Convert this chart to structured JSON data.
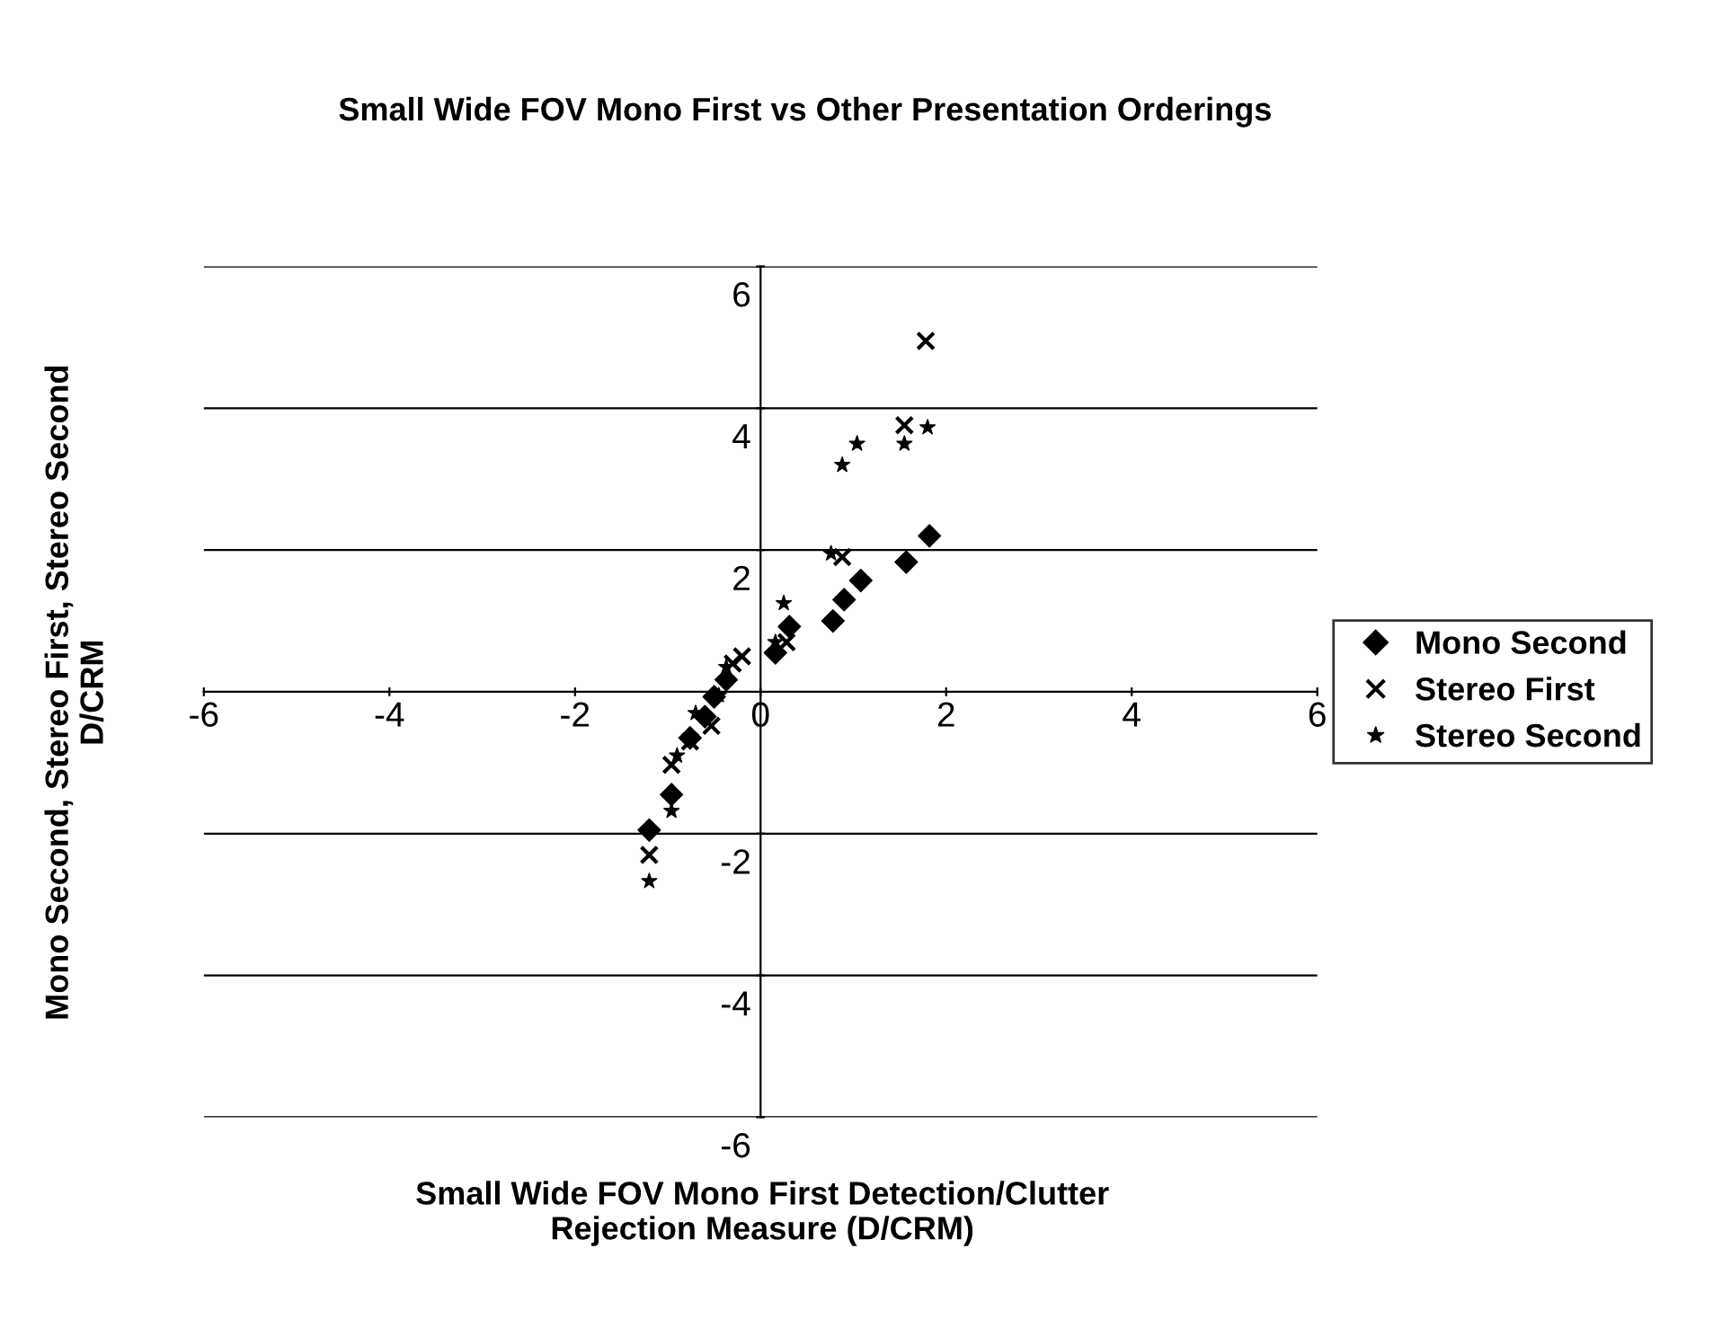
{
  "chart_data": {
    "type": "scatter",
    "title": "Small Wide FOV Mono First vs Other Presentation Orderings",
    "xlabel": "Small Wide FOV Mono First Detection/Clutter\nRejection Measure (D/CRM)",
    "ylabel": "Mono Second, Stereo First, Stereo Second\nD/CRM",
    "xlim": [
      -6,
      6
    ],
    "ylim": [
      -6,
      6
    ],
    "xticks": [
      -6,
      -4,
      -2,
      0,
      2,
      4,
      6
    ],
    "yticks": [
      -6,
      -4,
      -2,
      2,
      4,
      6
    ],
    "grid": "y",
    "legend": "right",
    "series": [
      {
        "name": "Mono Second",
        "color": "#000000",
        "marker": "diamond",
        "x": [
          1.82,
          1.57,
          1.08,
          0.9,
          0.78,
          0.31,
          0.16,
          -0.37,
          -0.5,
          -0.6,
          -0.76,
          -0.96,
          -1.2
        ],
        "values": [
          2.2,
          1.83,
          1.57,
          1.3,
          1.0,
          0.92,
          0.55,
          0.17,
          -0.07,
          -0.35,
          -0.65,
          -1.45,
          -1.95
        ]
      },
      {
        "name": "Stereo First",
        "color": "#000000",
        "marker": "cross",
        "x": [
          1.78,
          1.55,
          0.88,
          0.28,
          -0.2,
          -0.3,
          -0.53,
          -0.76,
          -0.96,
          -1.2
        ],
        "values": [
          4.95,
          3.76,
          1.9,
          0.7,
          0.5,
          0.4,
          -0.48,
          -0.7,
          -1.03,
          -2.3
        ]
      },
      {
        "name": "Stereo Second",
        "color": "#000000",
        "marker": "star",
        "x": [
          1.8,
          1.55,
          1.04,
          0.88,
          0.76,
          0.25,
          0.16,
          -0.37,
          -0.45,
          -0.7,
          -0.9,
          -0.96,
          -1.2
        ],
        "values": [
          3.73,
          3.5,
          3.5,
          3.2,
          1.95,
          1.25,
          0.7,
          0.35,
          -0.05,
          -0.3,
          -0.9,
          -1.68,
          -2.67
        ]
      }
    ]
  }
}
